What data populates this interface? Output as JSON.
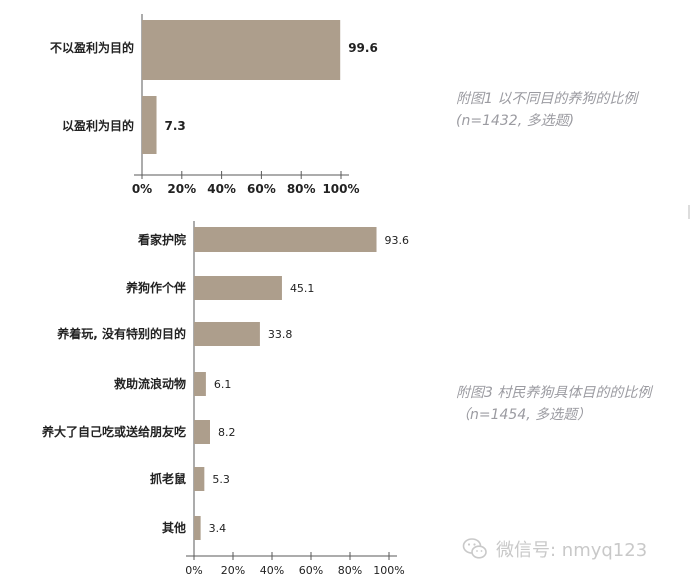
{
  "chart_data": [
    {
      "type": "bar",
      "orientation": "horizontal",
      "title": "附图1 以不同目的养狗的比例",
      "subtitle": "(n=1432, 多选题)",
      "categories": [
        "不以盈利为目的",
        "以盈利为目的"
      ],
      "values": [
        99.6,
        7.3
      ],
      "value_labels": [
        "99.6",
        "7.3"
      ],
      "xlim": [
        0,
        100
      ],
      "xticks": [
        "0%",
        "20%",
        "40%",
        "60%",
        "80%",
        "100%"
      ],
      "grid": false,
      "legend": "none",
      "bar_color": "#ad9e8c"
    },
    {
      "type": "bar",
      "orientation": "horizontal",
      "title": "附图3 村民养狗具体目的的比例",
      "subtitle": "（n=1454, 多选题）",
      "categories": [
        "看家护院",
        "养狗作个伴",
        "养着玩, 没有特别的目的",
        "救助流浪动物",
        "养大了自己吃或送给朋友吃",
        "抓老鼠",
        "其他"
      ],
      "values": [
        93.6,
        45.1,
        33.8,
        6.1,
        8.2,
        5.3,
        3.4
      ],
      "value_labels": [
        "93.6",
        "45.1",
        "33.8",
        "6.1",
        "8.2",
        "5.3",
        "3.4"
      ],
      "xlim": [
        0,
        100
      ],
      "xticks": [
        "0%",
        "20%",
        "40%",
        "60%",
        "80%",
        "100%"
      ],
      "grid": false,
      "legend": "none",
      "bar_color": "#ad9e8c"
    }
  ],
  "watermark": {
    "text": "微信号: nmyq123",
    "icon": "wechat-icon"
  }
}
